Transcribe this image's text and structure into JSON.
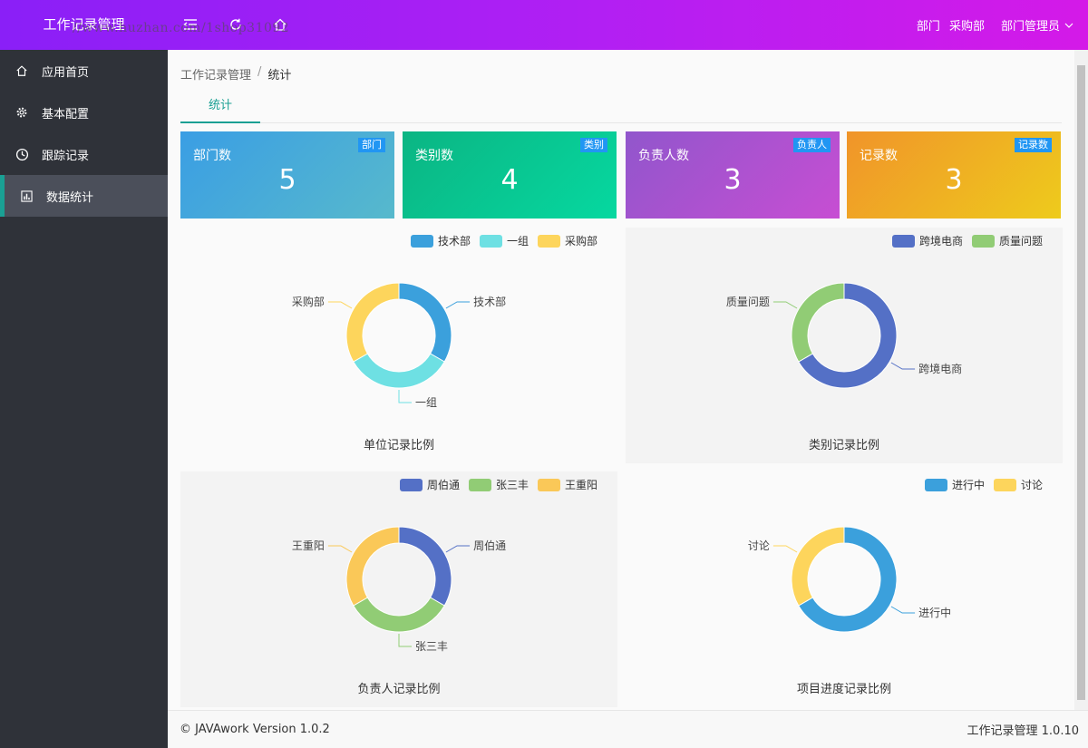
{
  "header": {
    "logo": "工作记录管理",
    "dept_label": "部门",
    "dept_value": "采购部",
    "user_role": "部门管理员",
    "icons": [
      "menu-toggle-icon",
      "refresh-icon",
      "home-icon"
    ]
  },
  "sidebar": {
    "items": [
      {
        "label": "应用首页",
        "icon": "home-icon"
      },
      {
        "label": "基本配置",
        "icon": "gear-icon"
      },
      {
        "label": "跟踪记录",
        "icon": "clock-icon"
      },
      {
        "label": "数据统计",
        "icon": "bar-chart-icon",
        "active": true
      }
    ]
  },
  "breadcrumb": [
    "工作记录管理",
    "统计"
  ],
  "watermark": "//www.huzhan.com/1shop31092",
  "tabs": [
    "统计"
  ],
  "cards": [
    {
      "title": "部门数",
      "badge": "部门",
      "value": "5",
      "color_from": "#3a9ee4",
      "color_to": "#57b9cc"
    },
    {
      "title": "类别数",
      "badge": "类别",
      "value": "4",
      "color_from": "#0bb583",
      "color_to": "#06d8a0"
    },
    {
      "title": "负责人数",
      "badge": "负责人",
      "value": "3",
      "color_from": "#9156cc",
      "color_to": "#c74ed3"
    },
    {
      "title": "记录数",
      "badge": "记录数",
      "value": "3",
      "color_from": "#f0942a",
      "color_to": "#eecb1c"
    }
  ],
  "chart_data": [
    {
      "type": "pie",
      "title": "单位记录比例",
      "legend": "top-right",
      "categories": [
        "技术部",
        "一组",
        "采购部"
      ],
      "values": [
        1,
        1,
        1
      ],
      "colors": [
        "#3ba0dc",
        "#6ee0e3",
        "#fdd55c"
      ]
    },
    {
      "type": "pie",
      "title": "类别记录比例",
      "legend": "top-right",
      "categories": [
        "跨境电商",
        "质量问题"
      ],
      "values": [
        2,
        1
      ],
      "colors": [
        "#5470c6",
        "#91cc75"
      ]
    },
    {
      "type": "pie",
      "title": "负责人记录比例",
      "legend": "top-right",
      "categories": [
        "周伯通",
        "张三丰",
        "王重阳"
      ],
      "values": [
        1,
        1,
        1
      ],
      "colors": [
        "#5470c6",
        "#91cc75",
        "#fac858"
      ]
    },
    {
      "type": "pie",
      "title": "项目进度记录比例",
      "legend": "top-right",
      "categories": [
        "进行中",
        "讨论"
      ],
      "values": [
        2,
        1
      ],
      "colors": [
        "#3ba0dc",
        "#fdd55c"
      ]
    }
  ],
  "footer": {
    "copyright": "© JAVAwork Version 1.0.2",
    "app_version": "工作记录管理 1.0.10"
  }
}
